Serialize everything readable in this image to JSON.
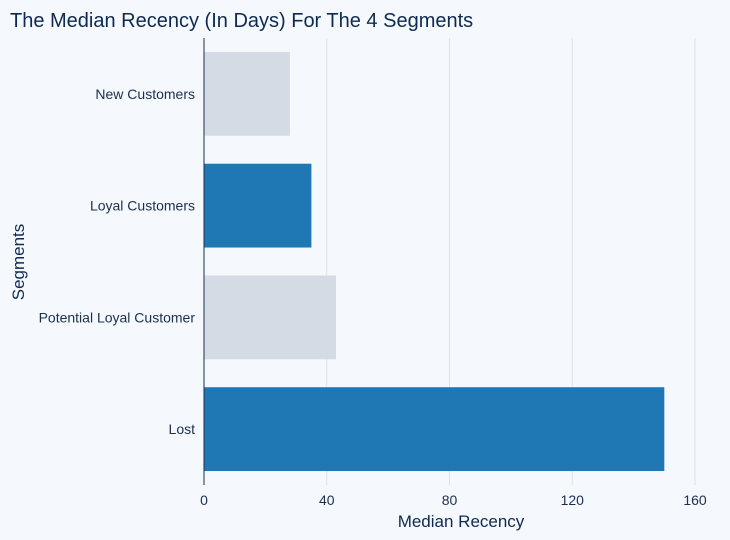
{
  "chart_data": {
    "type": "bar",
    "orientation": "horizontal",
    "title": "The Median Recency (In Days) For The 4 Segments",
    "xlabel": "Median Recency",
    "ylabel": "Segments",
    "categories": [
      "New Customers",
      "Loyal Customers",
      "Potential Loyal Customer",
      "Lost"
    ],
    "values": [
      28,
      35,
      43,
      150
    ],
    "xlim": [
      0,
      160
    ],
    "xticks": [
      0,
      40,
      80,
      120,
      160
    ],
    "grid": "vertical",
    "colors": {
      "highlight": "#1f77b4",
      "muted": "#d5dbe5",
      "background": "#f5f8fc"
    },
    "bar_colors": [
      "muted",
      "highlight",
      "muted",
      "highlight"
    ]
  }
}
